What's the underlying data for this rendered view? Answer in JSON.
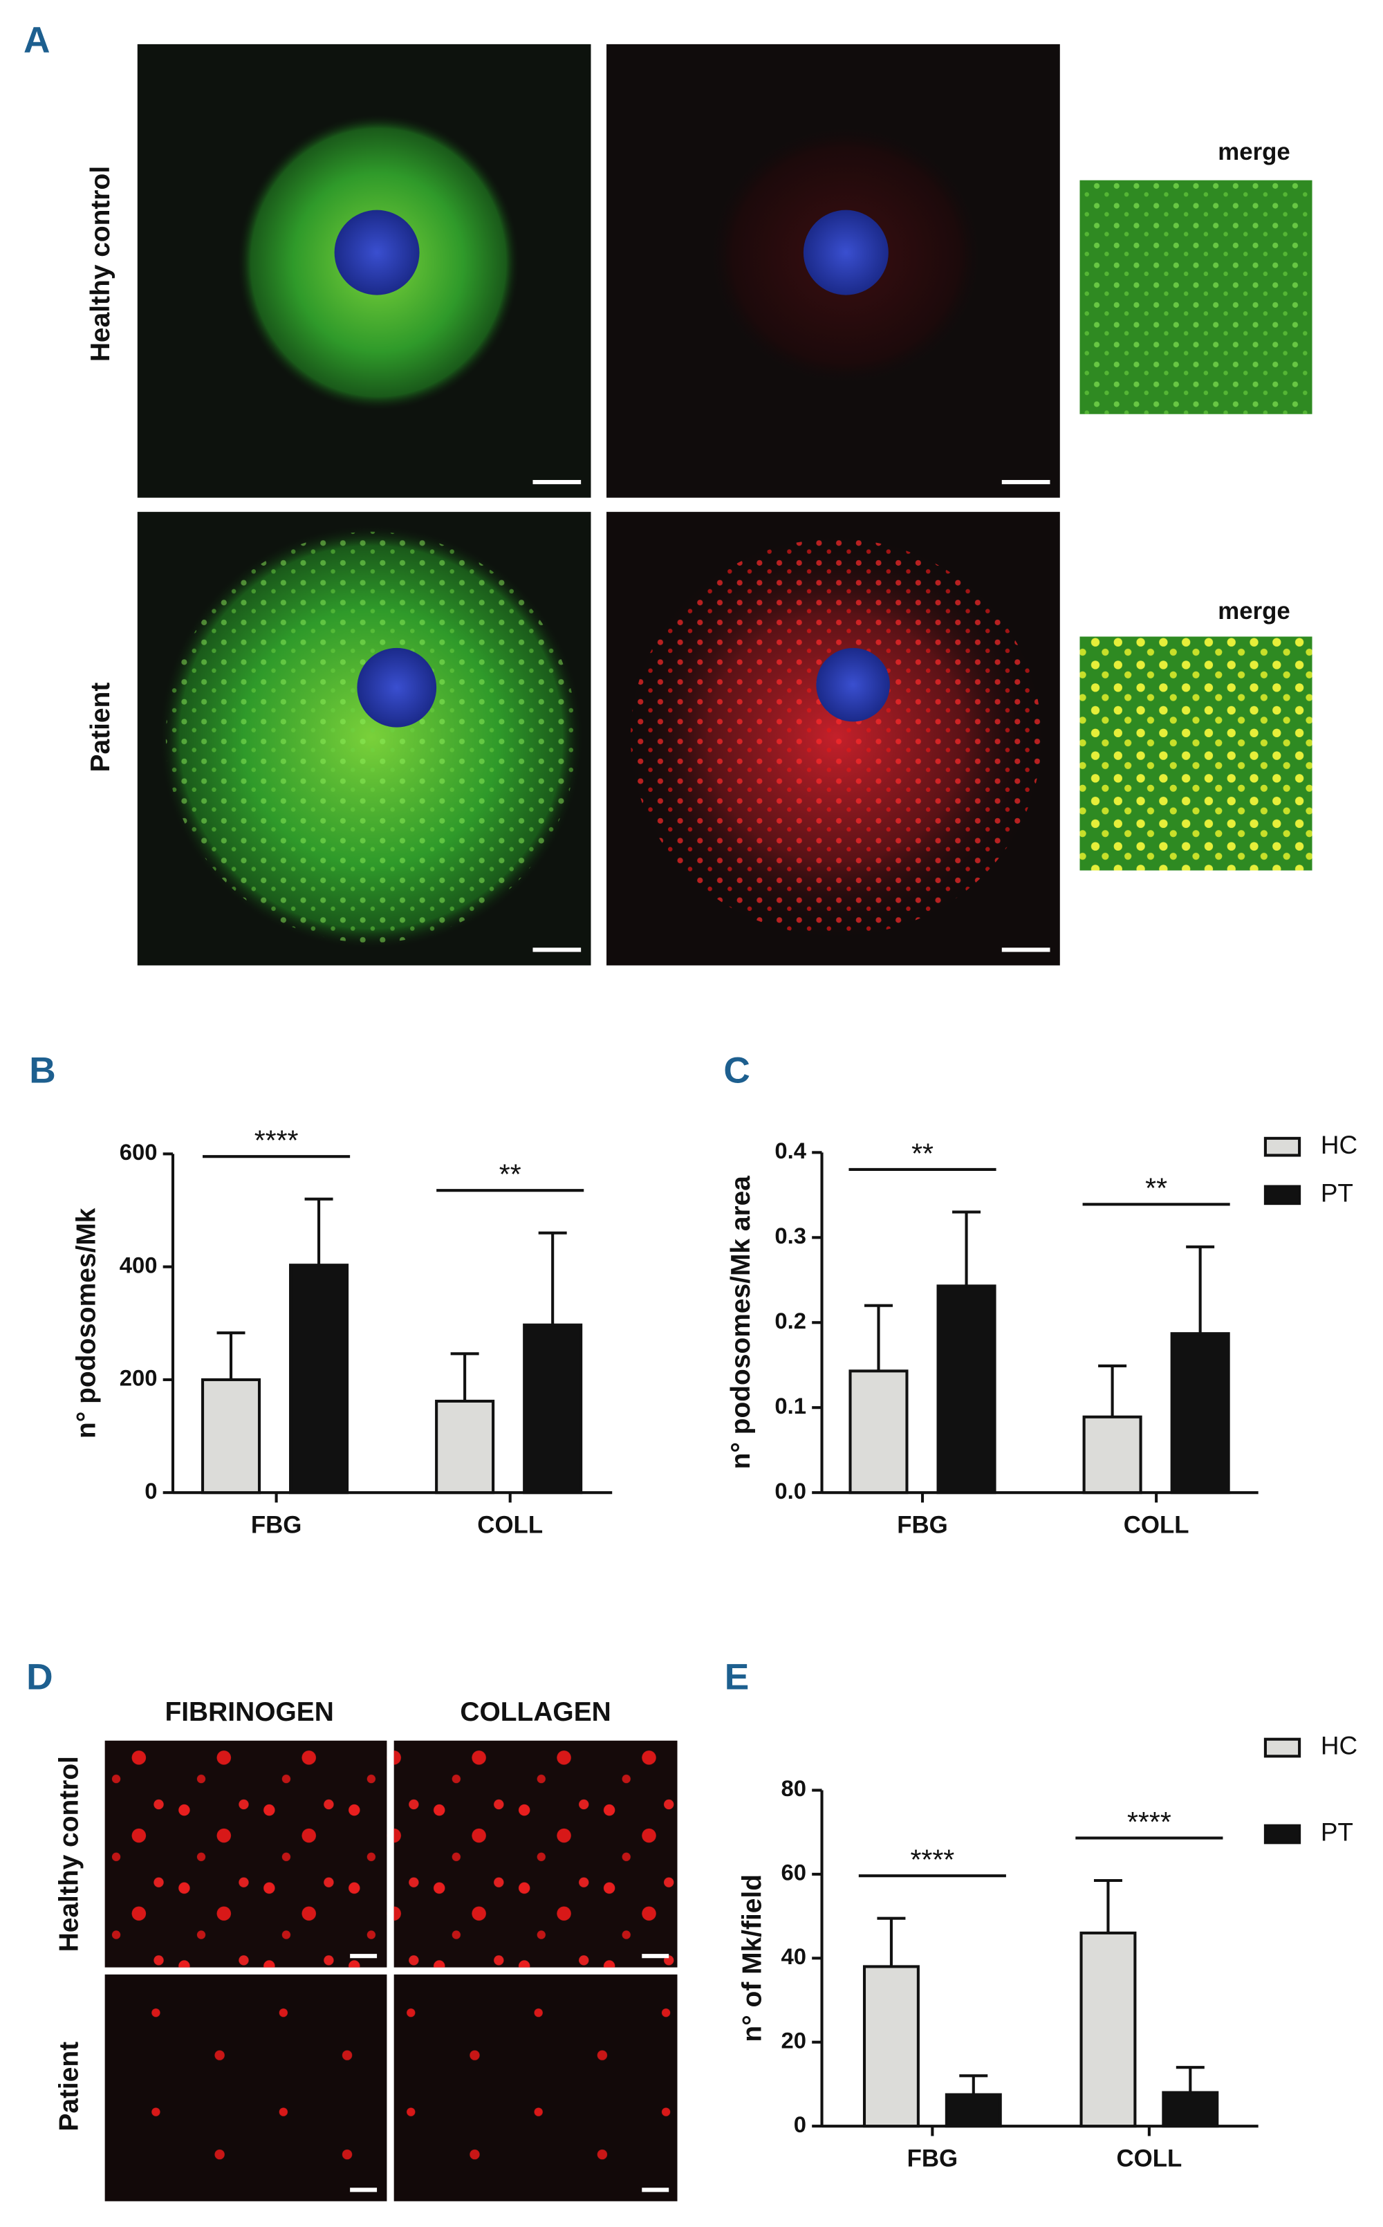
{
  "panels": {
    "letters": [
      "A",
      "B",
      "C",
      "D",
      "E"
    ],
    "a": {
      "rows": [
        "Healthy control",
        "Patient"
      ],
      "merge": [
        "merge",
        "merge"
      ]
    },
    "d": {
      "columns": [
        "FIBRINOGEN",
        "COLLAGEN"
      ],
      "rows": [
        "Healthy control",
        "Patient"
      ]
    }
  },
  "chart_data": [
    {
      "type": "bar",
      "y_label": "n° podosomes/Mk",
      "categories": [
        "FBG",
        "COLL"
      ],
      "series": [
        {
          "color": "#dcdcd9",
          "values": [
            200,
            162
          ],
          "errors": [
            83,
            84
          ]
        },
        {
          "color": "#111111",
          "values": [
            403,
            297
          ],
          "errors": [
            117,
            163
          ]
        }
      ],
      "ylim": [
        0,
        600
      ],
      "yticks": [
        0,
        200,
        400,
        600
      ],
      "annotations": [
        {
          "text": "****",
          "category": 0
        },
        {
          "text": "**",
          "category": 1
        }
      ],
      "legend": false
    },
    {
      "type": "bar",
      "y_label": "n° podosomes/Mk area",
      "categories": [
        "FBG",
        "COLL"
      ],
      "series": [
        {
          "name": "HC",
          "color": "#dcdcd9",
          "values": [
            0.143,
            0.089
          ],
          "errors": [
            0.077,
            0.06
          ]
        },
        {
          "name": "PT",
          "color": "#111111",
          "values": [
            0.243,
            0.187
          ],
          "errors": [
            0.087,
            0.102
          ]
        }
      ],
      "ylim": [
        0,
        0.4
      ],
      "yticks": [
        {
          "value": 0,
          "label": "0.0"
        },
        0.1,
        0.2,
        0.3,
        0.4
      ],
      "annotations": [
        {
          "text": "**",
          "category": 0
        },
        {
          "text": "**",
          "category": 1
        }
      ],
      "legend": true
    },
    {
      "type": "bar",
      "y_label": "n° of Mk/field",
      "categories": [
        "FBG",
        "COLL"
      ],
      "series": [
        {
          "name": "HC",
          "color": "#dcdcd9",
          "values": [
            38,
            46
          ],
          "errors": [
            11.5,
            12.5
          ]
        },
        {
          "name": "PT",
          "color": "#111111",
          "values": [
            7.5,
            8
          ],
          "errors": [
            4.5,
            6
          ]
        }
      ],
      "ylim": [
        0,
        80
      ],
      "yticks": [
        0,
        20,
        40,
        60,
        80
      ],
      "annotations": [
        {
          "text": "****",
          "category": 0
        },
        {
          "text": "****",
          "category": 1
        }
      ],
      "legend": true
    }
  ]
}
